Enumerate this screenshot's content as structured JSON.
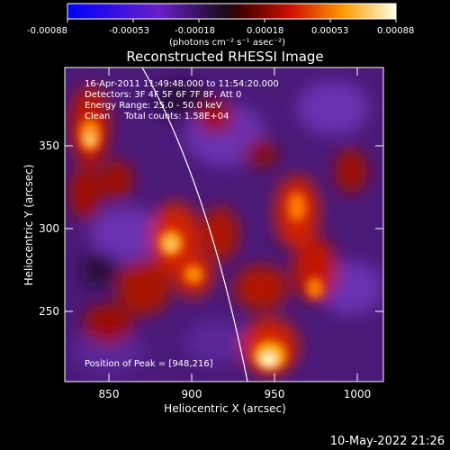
{
  "colorbar": {
    "ticks": [
      "-0.00088",
      "-0.00053",
      "-0.00018",
      "0.00018",
      "0.00053",
      "0.00088"
    ],
    "unit_label": "(photons cm⁻² s⁻¹ asec⁻²)"
  },
  "plot": {
    "title": "Reconstructed RHESSI Image",
    "xlabel": "Heliocentric X (arcsec)",
    "ylabel": "Heliocentric Y (arcsec)",
    "xticks": [
      "850",
      "900",
      "950",
      "1000"
    ],
    "yticks": [
      "350",
      "300",
      "250"
    ],
    "info": {
      "time": "16-Apr-2011 11:49:48.000 to 11:54:20.000",
      "detectors": "Detectors: 3F 4F 5F 6F 7F 8F, Att 0",
      "energy": "Energy Range: 25.0 - 50.0 keV",
      "method": "Clean     Total counts: 1.58E+04"
    },
    "peak": "Position of Peak = [948,216]"
  },
  "footer": {
    "timestamp": "10-May-2022 21:26"
  }
}
